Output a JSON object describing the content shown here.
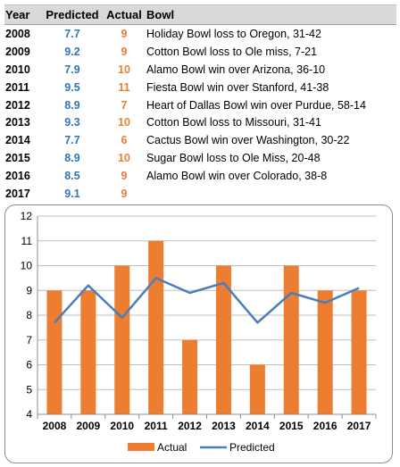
{
  "table": {
    "headers": [
      "Year",
      "Predicted",
      "Actual",
      "Bowl"
    ],
    "rows": [
      {
        "year": "2008",
        "predicted": "7.7",
        "actual": "9",
        "bowl": "Holiday Bowl loss to Oregon, 31-42"
      },
      {
        "year": "2009",
        "predicted": "9.2",
        "actual": "9",
        "bowl": "Cotton Bowl loss to Ole miss, 7-21"
      },
      {
        "year": "2010",
        "predicted": "7.9",
        "actual": "10",
        "bowl": "Alamo Bowl win over Arizona, 36-10"
      },
      {
        "year": "2011",
        "predicted": "9.5",
        "actual": "11",
        "bowl": "Fiesta Bowl win over Stanford, 41-38"
      },
      {
        "year": "2012",
        "predicted": "8.9",
        "actual": "7",
        "bowl": "Heart of Dallas Bowl win over Purdue, 58-14"
      },
      {
        "year": "2013",
        "predicted": "9.3",
        "actual": "10",
        "bowl": "Cotton Bowl loss to Missouri, 31-41"
      },
      {
        "year": "2014",
        "predicted": "7.7",
        "actual": "6",
        "bowl": "Cactus Bowl win over Washington, 30-22"
      },
      {
        "year": "2015",
        "predicted": "8.9",
        "actual": "10",
        "bowl": "Sugar Bowl loss to Ole Miss, 20-48"
      },
      {
        "year": "2016",
        "predicted": "8.5",
        "actual": "9",
        "bowl": "Alamo Bowl win over Colorado, 38-8"
      },
      {
        "year": "2017",
        "predicted": "9.1",
        "actual": "9",
        "bowl": ""
      }
    ]
  },
  "colors": {
    "actual": "#ed7d31",
    "predicted": "#4a7ebb",
    "predicted_text": "#2e75b6"
  },
  "chart_data": {
    "type": "bar",
    "categories": [
      "2008",
      "2009",
      "2010",
      "2011",
      "2012",
      "2013",
      "2014",
      "2015",
      "2016",
      "2017"
    ],
    "series": [
      {
        "name": "Actual",
        "type": "bar",
        "values": [
          9,
          9,
          10,
          11,
          7,
          10,
          6,
          10,
          9,
          9
        ]
      },
      {
        "name": "Predicted",
        "type": "line",
        "values": [
          7.7,
          9.2,
          7.9,
          9.5,
          8.9,
          9.3,
          7.7,
          8.9,
          8.5,
          9.1
        ]
      }
    ],
    "yticks": [
      "4",
      "5",
      "6",
      "7",
      "8",
      "9",
      "10",
      "11",
      "12"
    ],
    "ylim": [
      4,
      12
    ],
    "grid": true,
    "legend": "bottom"
  }
}
